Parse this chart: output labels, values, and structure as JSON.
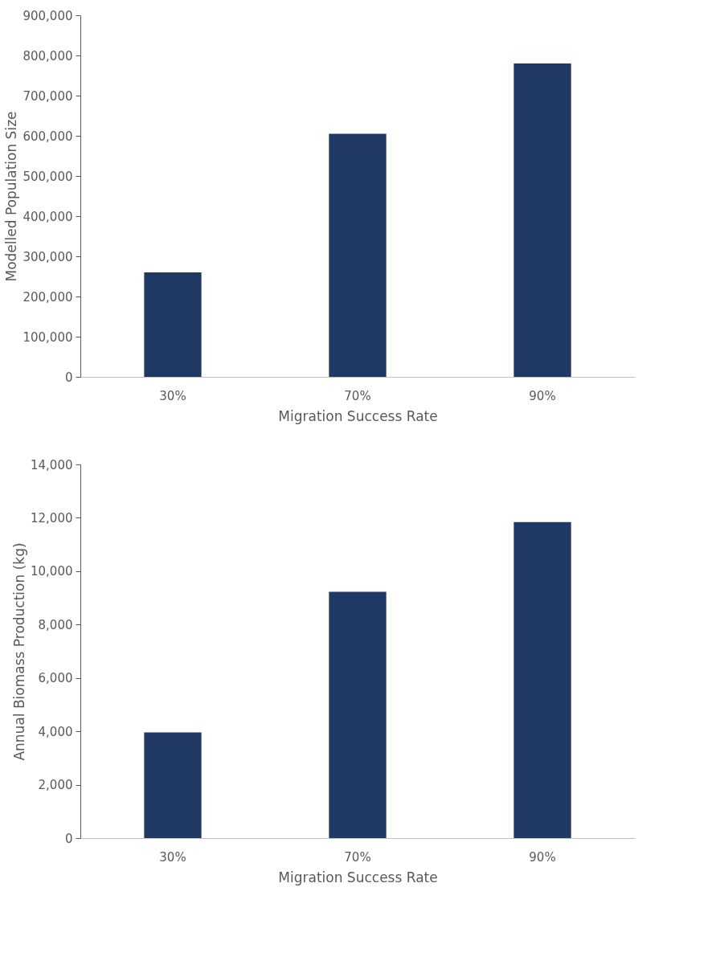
{
  "chart_data": [
    {
      "type": "bar",
      "xlabel": "Migration Success Rate",
      "ylabel": "Modelled Population Size",
      "categories": [
        "30%",
        "70%",
        "90%"
      ],
      "values": [
        260000,
        605000,
        780000
      ],
      "color": "#203864",
      "ylim": [
        0,
        900000
      ],
      "yticks": [
        {
          "value": 0,
          "label": "0"
        },
        {
          "value": 100000,
          "label": "100,000"
        },
        {
          "value": 200000,
          "label": "200,000"
        },
        {
          "value": 300000,
          "label": "300,000"
        },
        {
          "value": 400000,
          "label": "400,000"
        },
        {
          "value": 500000,
          "label": "500,000"
        },
        {
          "value": 600000,
          "label": "600,000"
        },
        {
          "value": 700000,
          "label": "700,000"
        },
        {
          "value": 800000,
          "label": "800,000"
        },
        {
          "value": 900000,
          "label": "900,000"
        }
      ],
      "grid": false
    },
    {
      "type": "bar",
      "xlabel": "Migration Success Rate",
      "ylabel": "Annual Biomass Production (kg)",
      "categories": [
        "30%",
        "70%",
        "90%"
      ],
      "values": [
        3960,
        9230,
        11840
      ],
      "color": "#203864",
      "ylim": [
        0,
        14000
      ],
      "yticks": [
        {
          "value": 0,
          "label": "0"
        },
        {
          "value": 2000,
          "label": "2,000"
        },
        {
          "value": 4000,
          "label": "4,000"
        },
        {
          "value": 6000,
          "label": "6,000"
        },
        {
          "value": 8000,
          "label": "8,000"
        },
        {
          "value": 10000,
          "label": "10,000"
        },
        {
          "value": 12000,
          "label": "12,000"
        },
        {
          "value": 14000,
          "label": "14,000"
        }
      ],
      "grid": false
    }
  ]
}
